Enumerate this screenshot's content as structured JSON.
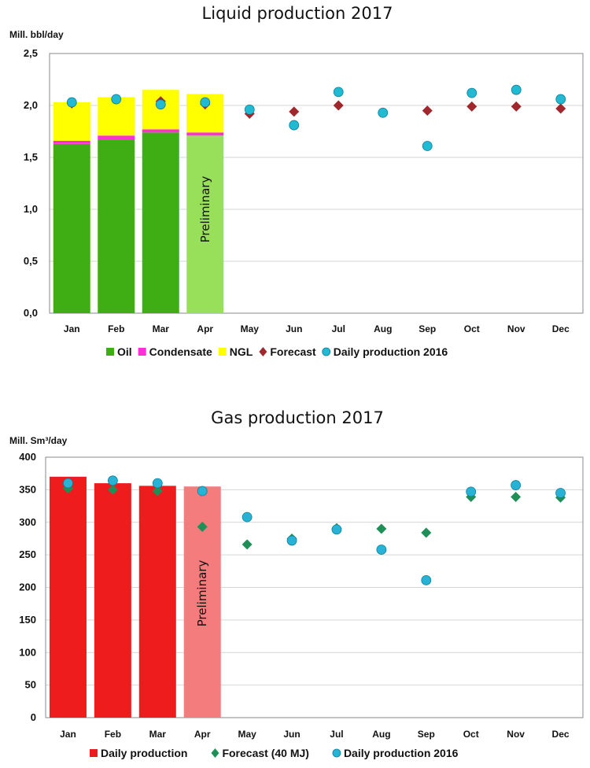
{
  "chart_data": [
    {
      "type": "bar",
      "title": "Liquid production 2017",
      "ylabel": "Mill. bbl/day",
      "ylim": [
        0,
        2.5
      ],
      "yticks": [
        "0,0",
        "0,5",
        "1,0",
        "1,5",
        "2,0",
        "2,5"
      ],
      "ytick_values": [
        0,
        0.5,
        1.0,
        1.5,
        2.0,
        2.5
      ],
      "categories": [
        "Jan",
        "Feb",
        "Mar",
        "Apr",
        "May",
        "Jun",
        "Jul",
        "Aug",
        "Sep",
        "Oct",
        "Nov",
        "Dec"
      ],
      "stacked": true,
      "series": [
        {
          "name": "Oil",
          "kind": "bar",
          "color": "#3fae15",
          "values": [
            1.63,
            1.67,
            1.74,
            1.71,
            null,
            null,
            null,
            null,
            null,
            null,
            null,
            null
          ]
        },
        {
          "name": "Condensate",
          "kind": "bar",
          "color": "#ff2fd6",
          "values": [
            0.03,
            0.04,
            0.03,
            0.03,
            null,
            null,
            null,
            null,
            null,
            null,
            null,
            null
          ]
        },
        {
          "name": "NGL",
          "kind": "bar",
          "color": "#ffff00",
          "values": [
            0.37,
            0.37,
            0.38,
            0.37,
            null,
            null,
            null,
            null,
            null,
            null,
            null,
            null
          ]
        },
        {
          "name": "Forecast",
          "kind": "marker",
          "marker": "diamond",
          "color": "#a0282c",
          "values": [
            2.02,
            2.06,
            2.04,
            2.01,
            1.92,
            1.94,
            2.0,
            1.93,
            1.95,
            1.99,
            1.99,
            1.97
          ]
        },
        {
          "name": "Daily production 2016",
          "kind": "marker",
          "marker": "circle",
          "color": "#22b9d2",
          "values": [
            2.03,
            2.06,
            2.01,
            2.03,
            1.96,
            1.81,
            2.13,
            1.93,
            1.61,
            2.12,
            2.15,
            2.06
          ]
        }
      ],
      "preliminary_index": 3,
      "preliminary_label": "Preliminary",
      "preliminary_color": "#99e05a",
      "legend_order": [
        "Oil",
        "Condensate",
        "NGL",
        "Forecast",
        "Daily production 2016"
      ],
      "legend_position": "bottom",
      "grid": true
    },
    {
      "type": "bar",
      "title": "Gas production 2017",
      "ylabel": "Mill. Sm³/day",
      "ylim": [
        0,
        400
      ],
      "yticks": [
        "0",
        "50",
        "100",
        "150",
        "200",
        "250",
        "300",
        "350",
        "400"
      ],
      "ytick_values": [
        0,
        50,
        100,
        150,
        200,
        250,
        300,
        350,
        400
      ],
      "categories": [
        "Jan",
        "Feb",
        "Mar",
        "Apr",
        "May",
        "Jun",
        "Jul",
        "Aug",
        "Sep",
        "Oct",
        "Nov",
        "Dec"
      ],
      "stacked": false,
      "series": [
        {
          "name": "Daily production",
          "kind": "bar",
          "color": "#ee1c1c",
          "values": [
            370,
            360,
            356,
            355,
            null,
            null,
            null,
            null,
            null,
            null,
            null,
            null
          ]
        },
        {
          "name": "Forecast (40 MJ)",
          "kind": "marker",
          "marker": "diamond",
          "color": "#1f8f58",
          "values": [
            352,
            350,
            348,
            293,
            266,
            275,
            291,
            290,
            284,
            339,
            339,
            338
          ]
        },
        {
          "name": "Daily production 2016",
          "kind": "marker",
          "marker": "circle",
          "color": "#28b3d6",
          "values": [
            360,
            364,
            360,
            348,
            308,
            272,
            289,
            258,
            211,
            347,
            357,
            345
          ]
        }
      ],
      "preliminary_index": 3,
      "preliminary_label": "Preliminary",
      "preliminary_color": "#f47c7c",
      "legend_order": [
        "Daily production",
        "Forecast (40 MJ)",
        "Daily production 2016"
      ],
      "legend_position": "bottom",
      "grid": true
    }
  ]
}
